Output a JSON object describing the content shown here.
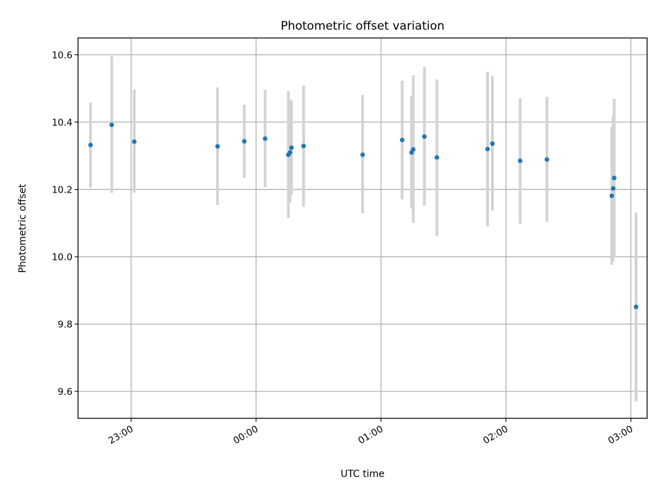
{
  "chart_data": {
    "type": "scatter",
    "title": "Photometric offset variation",
    "xlabel": "UTC time",
    "ylabel": "Photometric offset",
    "xlim_hours": [
      22.575,
      3.13
    ],
    "ylim": [
      9.52,
      10.65
    ],
    "grid": true,
    "colors": {
      "points": "#1f77b4",
      "errorbars": "#d3d3d3",
      "grid": "#b0b0b0"
    },
    "xticks": [
      {
        "h": 23.0,
        "label": "23:00"
      },
      {
        "h": 0.0,
        "label": "00:00"
      },
      {
        "h": 1.0,
        "label": "01:00"
      },
      {
        "h": 2.0,
        "label": "02:00"
      },
      {
        "h": 3.0,
        "label": "03:00"
      }
    ],
    "yticks": [
      {
        "v": 9.6,
        "label": "9.6"
      },
      {
        "v": 9.8,
        "label": "9.8"
      },
      {
        "v": 10.0,
        "label": "10.0"
      },
      {
        "v": 10.2,
        "label": "10.2"
      },
      {
        "v": 10.4,
        "label": "10.4"
      },
      {
        "v": 10.6,
        "label": "10.6"
      }
    ],
    "points": [
      {
        "t": "22:40:30",
        "y": 10.332,
        "lo": 10.206,
        "hi": 10.458
      },
      {
        "t": "22:50:40",
        "y": 10.392,
        "lo": 10.19,
        "hi": 10.596
      },
      {
        "t": "23:01:30",
        "y": 10.342,
        "lo": 10.19,
        "hi": 10.497
      },
      {
        "t": "23:41:30",
        "y": 10.328,
        "lo": 10.154,
        "hi": 10.503
      },
      {
        "t": "23:54:20",
        "y": 10.343,
        "lo": 10.234,
        "hi": 10.451
      },
      {
        "t": "00:04:20",
        "y": 10.351,
        "lo": 10.207,
        "hi": 10.496
      },
      {
        "t": "00:15:30",
        "y": 10.303,
        "lo": 10.115,
        "hi": 10.492
      },
      {
        "t": "00:16:20",
        "y": 10.31,
        "lo": 10.161,
        "hi": 10.467
      },
      {
        "t": "00:17:00",
        "y": 10.324,
        "lo": 10.185,
        "hi": 10.463
      },
      {
        "t": "00:22:50",
        "y": 10.329,
        "lo": 10.148,
        "hi": 10.509
      },
      {
        "t": "00:51:10",
        "y": 10.303,
        "lo": 10.129,
        "hi": 10.481
      },
      {
        "t": "01:10:10",
        "y": 10.347,
        "lo": 10.171,
        "hi": 10.523
      },
      {
        "t": "01:14:40",
        "y": 10.31,
        "lo": 10.143,
        "hi": 10.478
      },
      {
        "t": "01:15:30",
        "y": 10.319,
        "lo": 10.101,
        "hi": 10.539
      },
      {
        "t": "01:20:50",
        "y": 10.357,
        "lo": 10.152,
        "hi": 10.563
      },
      {
        "t": "01:26:50",
        "y": 10.295,
        "lo": 10.061,
        "hi": 10.527
      },
      {
        "t": "01:51:10",
        "y": 10.32,
        "lo": 10.09,
        "hi": 10.55
      },
      {
        "t": "01:53:30",
        "y": 10.336,
        "lo": 10.138,
        "hi": 10.537
      },
      {
        "t": "02:06:50",
        "y": 10.285,
        "lo": 10.098,
        "hi": 10.471
      },
      {
        "t": "02:19:40",
        "y": 10.289,
        "lo": 10.104,
        "hi": 10.475
      },
      {
        "t": "02:50:50",
        "y": 10.181,
        "lo": 9.976,
        "hi": 10.386
      },
      {
        "t": "02:51:30",
        "y": 10.203,
        "lo": 9.986,
        "hi": 10.42
      },
      {
        "t": "02:52:00",
        "y": 10.234,
        "lo": 9.998,
        "hi": 10.469
      },
      {
        "t": "03:02:30",
        "y": 9.851,
        "lo": 9.57,
        "hi": 10.131
      }
    ]
  }
}
